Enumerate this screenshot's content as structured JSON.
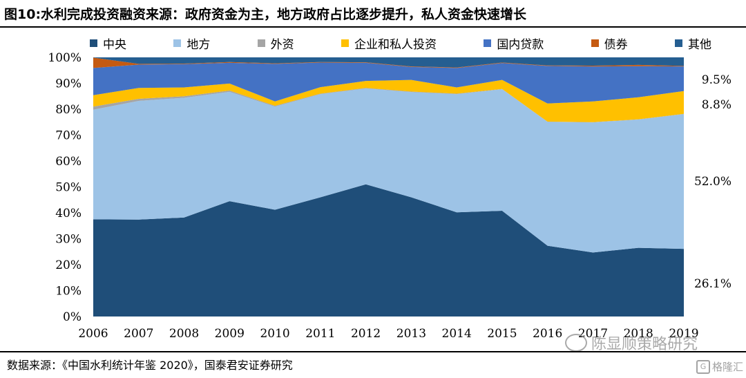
{
  "title": "图10:水利完成投资融资来源：政府资金为主，地方政府占比逐步提升，私人资金快速增长",
  "source": "数据来源：《中国水利统计年鉴 2020》，国泰君安证券研究",
  "watermark": "陈显顺策略研究",
  "watermark_logo_text": "格隆汇",
  "chart_data": {
    "type": "area",
    "stacked": true,
    "percent": true,
    "categories": [
      "2006",
      "2007",
      "2008",
      "2009",
      "2010",
      "2011",
      "2012",
      "2013",
      "2014",
      "2015",
      "2016",
      "2017",
      "2018",
      "2019"
    ],
    "ylim": [
      0,
      100
    ],
    "yticks": [
      "0%",
      "10%",
      "20%",
      "30%",
      "40%",
      "50%",
      "60%",
      "70%",
      "80%",
      "90%",
      "100%"
    ],
    "legend_position": "top",
    "grid": false,
    "series": [
      {
        "name": "中央",
        "color": "#1F4E79",
        "values": [
          37.5,
          37.4,
          38.2,
          44.5,
          41.2,
          46.0,
          51.0,
          46.0,
          40.2,
          40.8,
          27.3,
          24.7,
          26.5,
          26.1
        ]
      },
      {
        "name": "地方",
        "color": "#9DC3E6",
        "values": [
          42.3,
          45.8,
          46.2,
          42.2,
          39.8,
          39.8,
          37.0,
          40.6,
          45.6,
          46.9,
          47.8,
          50.2,
          49.5,
          52.0
        ]
      },
      {
        "name": "外资",
        "color": "#A5A5A5",
        "values": [
          1.2,
          0.8,
          0.6,
          0.5,
          0.3,
          0.2,
          0.2,
          0.2,
          0.2,
          0.1,
          0.1,
          0.1,
          0.1,
          0.1
        ]
      },
      {
        "name": "企业和私人投资",
        "color": "#FFC000",
        "values": [
          4.4,
          4.2,
          3.4,
          2.7,
          1.7,
          2.5,
          2.7,
          4.5,
          2.4,
          3.5,
          7.0,
          8.0,
          8.5,
          8.8
        ]
      },
      {
        "name": "国内贷款",
        "color": "#4472C4",
        "values": [
          10.5,
          9.0,
          9.0,
          8.0,
          14.5,
          9.5,
          7.0,
          5.0,
          7.5,
          6.5,
          14.5,
          13.5,
          12.0,
          9.5
        ]
      },
      {
        "name": "债券",
        "color": "#C55A11",
        "values": [
          4.0,
          0.3,
          0.2,
          0.3,
          0.2,
          0.2,
          0.2,
          0.2,
          0.2,
          0.2,
          0.2,
          0.3,
          0.5,
          0.2
        ]
      },
      {
        "name": "其他",
        "color": "#255E91",
        "values": [
          0.1,
          2.5,
          2.4,
          1.8,
          2.3,
          1.8,
          1.9,
          3.5,
          3.9,
          2.0,
          3.1,
          3.2,
          2.9,
          3.3
        ]
      }
    ],
    "end_labels": [
      "9.5%",
      "8.8%",
      "52.0%",
      "26.1%"
    ]
  }
}
